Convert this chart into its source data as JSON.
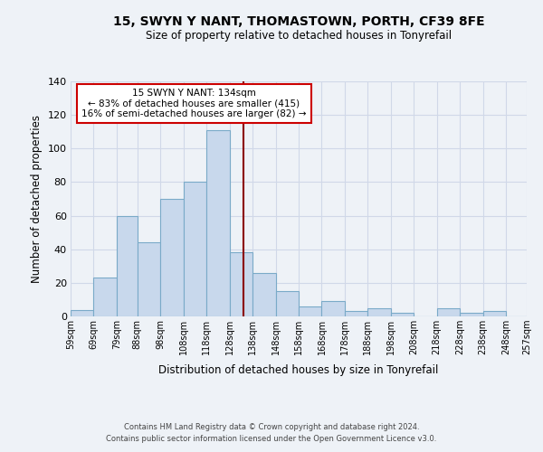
{
  "title": "15, SWYN Y NANT, THOMASTOWN, PORTH, CF39 8FE",
  "subtitle": "Size of property relative to detached houses in Tonyrefail",
  "xlabel": "Distribution of detached houses by size in Tonyrefail",
  "ylabel": "Number of detached properties",
  "bins": [
    59,
    69,
    79,
    88,
    98,
    108,
    118,
    128,
    138,
    148,
    158,
    168,
    178,
    188,
    198,
    208,
    218,
    228,
    238,
    248,
    257
  ],
  "counts": [
    4,
    23,
    60,
    44,
    70,
    80,
    111,
    38,
    26,
    15,
    6,
    9,
    3,
    5,
    2,
    0,
    5,
    2,
    3,
    0
  ],
  "bar_color": "#c8d8ec",
  "bar_edge_color": "#7aaac8",
  "vline_x": 134,
  "vline_color": "#8b0000",
  "annotation_text": "15 SWYN Y NANT: 134sqm\n← 83% of detached houses are smaller (415)\n16% of semi-detached houses are larger (82) →",
  "annotation_box_facecolor": "#ffffff",
  "annotation_box_edgecolor": "#cc0000",
  "ylim": [
    0,
    140
  ],
  "yticks": [
    0,
    20,
    40,
    60,
    80,
    100,
    120,
    140
  ],
  "tick_labels": [
    "59sqm",
    "69sqm",
    "79sqm",
    "88sqm",
    "98sqm",
    "108sqm",
    "118sqm",
    "128sqm",
    "138sqm",
    "148sqm",
    "158sqm",
    "168sqm",
    "178sqm",
    "188sqm",
    "198sqm",
    "208sqm",
    "218sqm",
    "228sqm",
    "238sqm",
    "248sqm",
    "257sqm"
  ],
  "footer1": "Contains HM Land Registry data © Crown copyright and database right 2024.",
  "footer2": "Contains public sector information licensed under the Open Government Licence v3.0.",
  "background_color": "#eef2f7",
  "grid_color": "#d0d8e8"
}
